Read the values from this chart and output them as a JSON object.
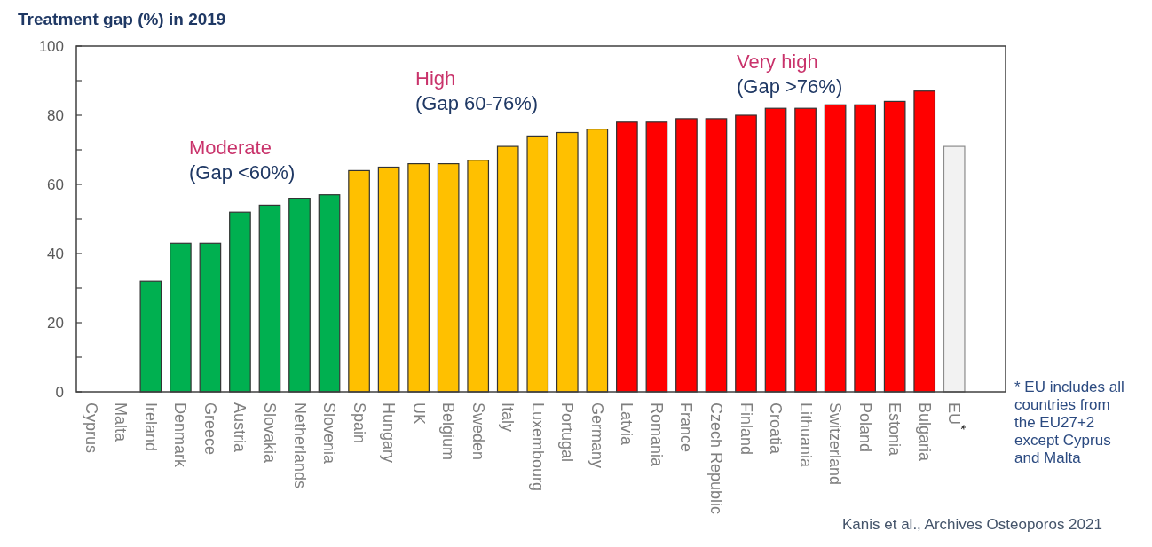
{
  "chart_data": {
    "type": "bar",
    "title": "Treatment gap (%) in 2019",
    "categories": [
      "Cyprus",
      "Malta",
      "Ireland",
      "Denmark",
      "Greece",
      "Austria",
      "Slovakia",
      "Netherlands",
      "Slovenia",
      "Spain",
      "Hungary",
      "UK",
      "Belgium",
      "Sweden",
      "Italy",
      "Luxembourg",
      "Portugal",
      "Germany",
      "Latvia",
      "Romania",
      "France",
      "Czech Republic",
      "Finland",
      "Croatia",
      "Lithuania",
      "Switzerland",
      "Poland",
      "Estonia",
      "Bulgaria",
      "EU$^{*}$"
    ],
    "values": [
      null,
      null,
      32,
      43,
      43,
      52,
      54,
      56,
      57,
      64,
      65,
      66,
      66,
      67,
      71,
      74,
      75,
      76,
      78,
      78,
      79,
      79,
      80,
      82,
      82,
      83,
      83,
      84,
      87,
      71
    ],
    "colors": [
      null,
      null,
      "#00b050",
      "#00b050",
      "#00b050",
      "#00b050",
      "#00b050",
      "#00b050",
      "#00b050",
      "#ffc000",
      "#ffc000",
      "#ffc000",
      "#ffc000",
      "#ffc000",
      "#ffc000",
      "#ffc000",
      "#ffc000",
      "#ffc000",
      "#ff0000",
      "#ff0000",
      "#ff0000",
      "#ff0000",
      "#ff0000",
      "#ff0000",
      "#ff0000",
      "#ff0000",
      "#ff0000",
      "#ff0000",
      "#ff0000",
      "#f2f2f2"
    ],
    "ylim": [
      0,
      100
    ],
    "yticks": [
      0,
      {
        "value": 10,
        "label": null
      },
      20,
      {
        "value": 30,
        "label": null
      },
      40,
      {
        "value": 50,
        "label": null
      },
      60,
      {
        "value": 70,
        "label": null
      },
      80,
      {
        "value": 90,
        "label": null
      },
      100
    ],
    "annotations": [
      "Moderate",
      "(Gap <60%)",
      "High",
      "(Gap 60-76%)",
      "Very high",
      "(Gap >76%)",
      "* EU includes all countries from the EU27+2 except Cyprus and Malta",
      "Kanis et al., Archives Osteoporos 2021"
    ]
  }
}
